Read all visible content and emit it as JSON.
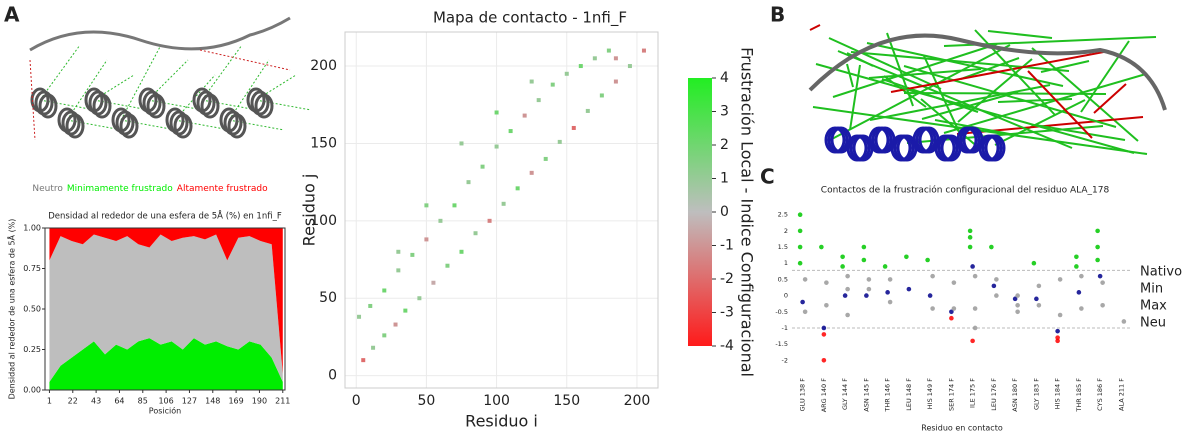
{
  "panels": [
    "A",
    "B",
    "C"
  ],
  "chart_data": [
    {
      "type": "area",
      "title": "Densidad al rededor de una esfera de 5Å (%) en 1nfi_F",
      "ylabel": "Densidad al rededor de una esfera de 5Å (%)",
      "xlabel": "Posición",
      "x": [
        1,
        11,
        21,
        31,
        41,
        51,
        61,
        71,
        81,
        91,
        101,
        111,
        121,
        131,
        141,
        151,
        161,
        171,
        181,
        191,
        201,
        211
      ],
      "series": [
        {
          "name": "Neutro",
          "color": "#bebebe",
          "values": [
            0.75,
            0.8,
            0.72,
            0.65,
            0.66,
            0.72,
            0.64,
            0.7,
            0.6,
            0.56,
            0.68,
            0.62,
            0.69,
            0.63,
            0.65,
            0.66,
            0.53,
            0.69,
            0.65,
            0.64,
            0.7,
            0.05
          ]
        },
        {
          "name": "Minimamente frustrado",
          "color": "#00ee00",
          "values": [
            0.05,
            0.15,
            0.2,
            0.25,
            0.3,
            0.22,
            0.28,
            0.25,
            0.3,
            0.32,
            0.28,
            0.3,
            0.25,
            0.32,
            0.28,
            0.3,
            0.27,
            0.25,
            0.3,
            0.28,
            0.2,
            0.05
          ]
        },
        {
          "name": "Altamente frustrado",
          "color": "#ff0000",
          "values": [
            0.2,
            0.05,
            0.08,
            0.1,
            0.04,
            0.06,
            0.08,
            0.05,
            0.1,
            0.12,
            0.04,
            0.08,
            0.06,
            0.05,
            0.07,
            0.04,
            0.2,
            0.06,
            0.05,
            0.08,
            0.1,
            0.9
          ]
        }
      ],
      "xlim": [
        -3,
        213
      ],
      "xticks": [
        1,
        22,
        43,
        64,
        85,
        106,
        127,
        148,
        169,
        190,
        211
      ],
      "ylim": [
        0,
        1
      ],
      "yticks": [
        {
          "value": 0,
          "label": "0.00"
        },
        {
          "value": 0.25,
          "label": "0.25"
        },
        {
          "value": 0.5,
          "label": "0.50"
        },
        {
          "value": 0.75,
          "label": "0.75"
        },
        {
          "value": 1,
          "label": "1.00"
        }
      ]
    },
    {
      "type": "scatter",
      "title": "Mapa de contacto - 1nfi_F",
      "xlabel": "Residuo i",
      "ylabel": "Residuo j",
      "colorbar_label": "Frustración Local - Indice Configuracional",
      "x": [
        5,
        12,
        20,
        28,
        35,
        45,
        55,
        65,
        75,
        85,
        95,
        105,
        115,
        125,
        135,
        145,
        155,
        165,
        175,
        185,
        195,
        205,
        2,
        10,
        20,
        30,
        40,
        50,
        60,
        70,
        80,
        90,
        100,
        110,
        120,
        130,
        140,
        150,
        160,
        170,
        180,
        185,
        30,
        50,
        75,
        100,
        125
      ],
      "y": [
        10,
        18,
        26,
        33,
        42,
        50,
        60,
        71,
        80,
        92,
        100,
        111,
        121,
        131,
        140,
        151,
        160,
        171,
        181,
        190,
        200,
        210,
        38,
        45,
        55,
        68,
        78,
        88,
        100,
        110,
        125,
        135,
        148,
        158,
        168,
        178,
        188,
        195,
        200,
        205,
        210,
        205,
        80,
        110,
        150,
        170,
        190
      ],
      "values": [
        -2,
        1,
        1.5,
        -1,
        2,
        1,
        -0.5,
        1.5,
        2,
        1,
        -1.5,
        1,
        2,
        -1,
        1.5,
        1,
        -2,
        1,
        1.5,
        -1,
        1,
        -1.5,
        1,
        1.5,
        2,
        1,
        1.5,
        -1,
        1,
        2,
        1,
        1.5,
        1,
        2,
        -1,
        1,
        1.5,
        1,
        2,
        1,
        1.5,
        -1,
        1,
        1.5,
        1,
        2,
        1
      ],
      "xlim": [
        -8,
        215
      ],
      "ylim": [
        -8,
        222
      ],
      "xticks": [
        0,
        50,
        100,
        150,
        200
      ],
      "yticks": [
        0,
        50,
        100,
        150,
        200
      ],
      "clim": [
        -4,
        4
      ],
      "colorbar_ticks": [
        4,
        3,
        2,
        1,
        0,
        -1,
        -2,
        -3,
        -4
      ],
      "grid": true
    },
    {
      "type": "strip",
      "title": "Contactos de la frustración configuracional del residuo ALA_178",
      "xlabel": "Residuo en contacto",
      "categories": [
        "GLU 138 F",
        "ARG 140 F",
        "GLY 144 F",
        "ASN 145 F",
        "THR 146 F",
        "LEU 148 F",
        "HIS 149 F",
        "SER 174 F",
        "ILE 175 F",
        "LEU 176 F",
        "ASN 180 F",
        "GLY 183 F",
        "HIS 184 F",
        "THR 185 F",
        "CYS 186 F",
        "ALA 211 F"
      ],
      "series": [
        {
          "name": "Nativo",
          "color": "#00008b",
          "x": [
            "GLU 138 F",
            "ARG 140 F",
            "GLY 144 F",
            "ASN 145 F",
            "THR 146 F",
            "LEU 148 F",
            "HIS 149 F",
            "SER 174 F",
            "ILE 175 F",
            "LEU 176 F",
            "ASN 180 F",
            "GLY 183 F",
            "HIS 184 F",
            "THR 185 F",
            "CYS 186 F"
          ],
          "values": [
            -0.2,
            -1.0,
            0.0,
            0.0,
            0.1,
            0.2,
            0.0,
            -0.5,
            0.9,
            0.3,
            -0.1,
            -0.1,
            -1.1,
            0.1,
            0.6
          ]
        },
        {
          "name": "Min",
          "color": "#00c800",
          "x": [
            "GLU 138 F",
            "GLU 138 F",
            "GLU 138 F",
            "GLU 138 F",
            "ARG 140 F",
            "GLY 144 F",
            "GLY 144 F",
            "ASN 145 F",
            "ASN 145 F",
            "THR 146 F",
            "LEU 148 F",
            "HIS 149 F",
            "ILE 175 F",
            "ILE 175 F",
            "ILE 175 F",
            "LEU 176 F",
            "GLY 183 F",
            "THR 185 F",
            "THR 185 F",
            "CYS 186 F",
            "CYS 186 F",
            "CYS 186 F"
          ],
          "values": [
            2.5,
            2.0,
            1.5,
            1.0,
            1.5,
            1.2,
            0.9,
            1.5,
            1.1,
            0.9,
            1.2,
            1.1,
            2.0,
            1.8,
            1.5,
            1.5,
            1.0,
            1.2,
            0.9,
            2.0,
            1.5,
            1.1
          ]
        },
        {
          "name": "Max",
          "color": "#ff0000",
          "x": [
            "ARG 140 F",
            "ARG 140 F",
            "SER 174 F",
            "ILE 175 F",
            "HIS 184 F",
            "HIS 184 F"
          ],
          "values": [
            -1.2,
            -2.0,
            -0.7,
            -1.4,
            -1.3,
            -1.4
          ]
        },
        {
          "name": "Neu",
          "color": "#999999",
          "x": [
            "GLU 138 F",
            "GLU 138 F",
            "ARG 140 F",
            "ARG 140 F",
            "GLY 144 F",
            "GLY 144 F",
            "GLY 144 F",
            "ASN 145 F",
            "ASN 145 F",
            "THR 146 F",
            "THR 146 F",
            "HIS 149 F",
            "HIS 149 F",
            "SER 174 F",
            "SER 174 F",
            "ILE 175 F",
            "ILE 175 F",
            "ILE 175 F",
            "LEU 176 F",
            "LEU 176 F",
            "ASN 180 F",
            "ASN 180 F",
            "ASN 180 F",
            "GLY 183 F",
            "GLY 183 F",
            "HIS 184 F",
            "HIS 184 F",
            "THR 185 F",
            "THR 185 F",
            "CYS 186 F",
            "CYS 186 F",
            "ALA 211 F"
          ],
          "values": [
            0.5,
            -0.5,
            0.4,
            -0.3,
            0.6,
            0.2,
            -0.6,
            0.5,
            0.2,
            0.5,
            -0.2,
            0.6,
            -0.4,
            0.4,
            -0.4,
            0.6,
            -0.4,
            -1.0,
            0.5,
            0.0,
            0.0,
            -0.3,
            -0.5,
            0.3,
            -0.3,
            0.5,
            -0.6,
            0.6,
            -0.4,
            0.4,
            -0.3,
            -0.8
          ]
        }
      ],
      "thresholds": [
        0.78,
        -1
      ],
      "ylim": [
        -2.3,
        2.8
      ],
      "yticks": [
        -2,
        -1.5,
        -1,
        -0.5,
        0,
        0.5,
        1,
        1.5,
        2,
        2.5
      ]
    }
  ]
}
